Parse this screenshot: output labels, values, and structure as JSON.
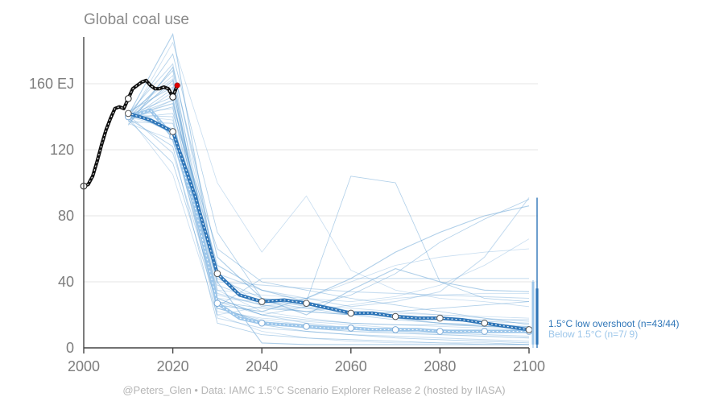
{
  "chart_data": {
    "type": "line",
    "title": "Global coal use",
    "xlabel": "",
    "ylabel": "",
    "xlim": [
      2000,
      2100
    ],
    "ylim": [
      0,
      190
    ],
    "xticks": [
      {
        "value": 2000,
        "label": "2000"
      },
      {
        "value": 2020,
        "label": "2020"
      },
      {
        "value": 2040,
        "label": "2040"
      },
      {
        "value": 2060,
        "label": "2060"
      },
      {
        "value": 2080,
        "label": "2080"
      },
      {
        "value": 2100,
        "label": "2100"
      }
    ],
    "yticks": [
      {
        "value": 0,
        "label": "0"
      },
      {
        "value": 40,
        "label": "40"
      },
      {
        "value": 80,
        "label": "80"
      },
      {
        "value": 120,
        "label": "120"
      },
      {
        "value": 160,
        "label": "160 EJ"
      }
    ],
    "grid": true,
    "colors": {
      "historical": "#111111",
      "latest_point": "#e00000",
      "overshoot": "#2f76b8",
      "below": "#9cc6ea",
      "scenario_lines": "#5f9fd4",
      "axis": "#444444",
      "grid": "#e6e6e6"
    },
    "historical": {
      "x": [
        2000,
        2001,
        2002,
        2003,
        2004,
        2005,
        2006,
        2007,
        2008,
        2009,
        2010,
        2011,
        2012,
        2013,
        2014,
        2015,
        2016,
        2017,
        2018,
        2019,
        2020,
        2021
      ],
      "y": [
        98,
        99,
        104,
        113,
        123,
        132,
        139,
        145,
        146,
        145,
        151,
        157,
        159,
        161,
        162,
        159,
        157,
        157,
        158,
        157,
        152,
        159
      ]
    },
    "series": [
      {
        "name": "1.5°C low overshoot (n=43/44)",
        "x": [
          2010,
          2015,
          2020,
          2025,
          2030,
          2035,
          2040,
          2045,
          2050,
          2055,
          2060,
          2065,
          2070,
          2075,
          2080,
          2085,
          2090,
          2095,
          2100
        ],
        "values": [
          142,
          138,
          131,
          92,
          45,
          32,
          28,
          29,
          27,
          24,
          21,
          21,
          19,
          18,
          18,
          17,
          15,
          13,
          11
        ],
        "range_2100": [
          2,
          36
        ],
        "max_2100": 91
      },
      {
        "name": "Below 1.5°C (n=7/ 9)",
        "x": [
          2010,
          2015,
          2020,
          2025,
          2030,
          2035,
          2040,
          2045,
          2050,
          2055,
          2060,
          2065,
          2070,
          2075,
          2080,
          2085,
          2090,
          2095,
          2100
        ],
        "values": [
          140,
          144,
          128,
          85,
          27,
          18,
          15,
          14,
          13,
          12,
          12,
          11,
          11,
          11,
          10,
          10,
          10,
          10,
          10
        ],
        "range_2100": [
          2,
          40
        ],
        "max_2100": 41
      }
    ],
    "marker_years": [
      2010,
      2020,
      2030,
      2040,
      2050,
      2060,
      2070,
      2080,
      2090,
      2100
    ],
    "scenario_lines": {
      "x": [
        2010,
        2020,
        2030,
        2040,
        2050,
        2060,
        2070,
        2080,
        2090,
        2100
      ],
      "lines": [
        [
          141,
          190,
          40,
          3,
          2,
          2,
          2,
          2,
          2,
          2
        ],
        [
          138,
          185,
          100,
          58,
          92,
          47,
          35,
          30,
          28,
          25
        ],
        [
          140,
          178,
          70,
          30,
          28,
          104,
          100,
          40,
          30,
          28
        ],
        [
          142,
          172,
          45,
          35,
          30,
          25,
          28,
          34,
          55,
          91
        ],
        [
          139,
          168,
          30,
          20,
          25,
          32,
          45,
          64,
          78,
          90
        ],
        [
          141,
          165,
          20,
          25,
          30,
          40,
          50,
          55,
          58,
          60
        ],
        [
          138,
          162,
          26,
          22,
          30,
          42,
          58,
          70,
          80,
          86
        ],
        [
          140,
          160,
          35,
          32,
          30,
          28,
          31,
          38,
          50,
          66
        ],
        [
          143,
          158,
          25,
          42,
          42,
          42,
          42,
          42,
          42,
          42
        ],
        [
          137,
          155,
          40,
          38,
          36,
          34,
          33,
          32,
          31,
          30
        ],
        [
          141,
          152,
          28,
          24,
          22,
          20,
          22,
          24,
          26,
          28
        ],
        [
          138,
          150,
          30,
          28,
          26,
          24,
          22,
          20,
          18,
          16
        ],
        [
          140,
          148,
          50,
          35,
          28,
          22,
          18,
          15,
          13,
          12
        ],
        [
          142,
          145,
          22,
          18,
          16,
          14,
          12,
          11,
          10,
          9
        ],
        [
          139,
          142,
          60,
          40,
          35,
          30,
          26,
          22,
          18,
          14
        ],
        [
          141,
          140,
          18,
          12,
          10,
          8,
          7,
          6,
          5,
          4
        ],
        [
          137,
          136,
          42,
          30,
          25,
          22,
          20,
          18,
          16,
          15
        ],
        [
          140,
          133,
          35,
          22,
          18,
          15,
          14,
          13,
          12,
          12
        ],
        [
          143,
          130,
          24,
          16,
          12,
          10,
          9,
          8,
          7,
          6
        ],
        [
          136,
          126,
          32,
          26,
          24,
          22,
          21,
          20,
          19,
          18
        ],
        [
          139,
          122,
          15,
          8,
          6,
          5,
          4,
          3,
          3,
          2
        ],
        [
          141,
          118,
          30,
          20,
          15,
          12,
          10,
          9,
          8,
          7
        ],
        [
          138,
          112,
          26,
          14,
          10,
          8,
          6,
          5,
          4,
          3
        ],
        [
          140,
          105,
          20,
          10,
          6,
          4,
          3,
          3,
          2,
          2
        ],
        [
          135,
          170,
          55,
          30,
          20,
          35,
          48,
          40,
          35,
          34
        ],
        [
          142,
          163,
          45,
          25,
          22,
          26,
          30,
          32,
          33,
          33
        ],
        [
          138,
          157,
          38,
          28,
          24,
          20,
          17,
          15,
          14,
          13
        ],
        [
          140,
          150,
          33,
          26,
          22,
          20,
          19,
          18,
          17,
          17
        ],
        [
          139,
          146,
          28,
          20,
          17,
          15,
          14,
          14,
          13,
          13
        ],
        [
          141,
          138,
          24,
          17,
          14,
          12,
          11,
          11,
          10,
          10
        ]
      ]
    },
    "credit": "@Peters_Glen  •  Data: IAMC 1.5°C Scenario Explorer Release 2 (hosted by IIASA)"
  }
}
